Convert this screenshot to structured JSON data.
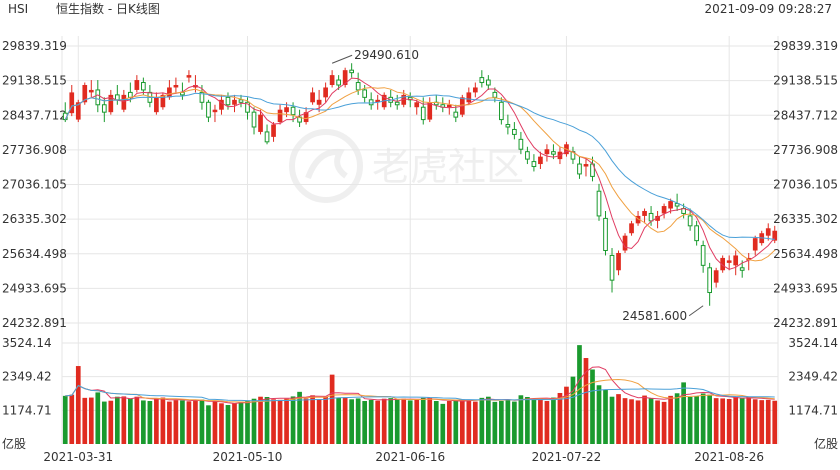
{
  "header": {
    "symbol": "HSI",
    "name": "恒生指数 - 日K线图",
    "datetime": "2021-09-09 09:28:27"
  },
  "watermark": "老虎社区",
  "colors": {
    "up": "#e02b20",
    "down": "#1a9a2e",
    "ma_short": "#e03c62",
    "ma_mid": "#f0a040",
    "ma_long": "#4aa0d8",
    "grid": "#e6e6e6",
    "text": "#333333"
  },
  "chart_data": [
    {
      "type": "candlestick",
      "title": "恒生指数 - 日K线图",
      "y_ticks": [
        "29839.319",
        "29138.515",
        "28437.712",
        "27736.908",
        "27036.105",
        "26335.302",
        "25634.498",
        "24933.695",
        "24232.891"
      ],
      "ylim": [
        24232.891,
        29839.319
      ],
      "x_ticks": [
        "2021-03-31",
        "2021-05-10",
        "2021-06-16",
        "2021-07-22",
        "2021-08-26"
      ],
      "x_tick_bar_index": [
        2,
        28,
        53,
        77,
        102
      ],
      "annotations": [
        {
          "text": "29490.610",
          "value": 29490.61,
          "bar_index": 41
        },
        {
          "text": "24581.600",
          "value": 24581.6,
          "bar_index": 98
        }
      ],
      "ohlc": [
        [
          28480,
          28700,
          28300,
          28350
        ],
        [
          28480,
          29050,
          28420,
          28900
        ],
        [
          28350,
          28750,
          28300,
          28700
        ],
        [
          28700,
          29100,
          28650,
          29050
        ],
        [
          28900,
          29150,
          28800,
          28950
        ],
        [
          28950,
          29150,
          28500,
          28650
        ],
        [
          28650,
          28800,
          28300,
          28500
        ],
        [
          28500,
          28950,
          28450,
          28850
        ],
        [
          28850,
          29050,
          28650,
          28750
        ],
        [
          28550,
          28950,
          28500,
          28850
        ],
        [
          28900,
          29100,
          28700,
          28800
        ],
        [
          28950,
          29250,
          28900,
          29150
        ],
        [
          29100,
          29200,
          28850,
          28950
        ],
        [
          28900,
          29050,
          28600,
          28700
        ],
        [
          28500,
          28900,
          28450,
          28800
        ],
        [
          28600,
          28900,
          28550,
          28850
        ],
        [
          28800,
          29150,
          28750,
          29000
        ],
        [
          29000,
          29200,
          28900,
          29050
        ],
        [
          28900,
          29100,
          28750,
          28850
        ],
        [
          29200,
          29350,
          29100,
          29250
        ],
        [
          29000,
          29250,
          28900,
          29050
        ],
        [
          28900,
          29050,
          28550,
          28700
        ],
        [
          28700,
          28750,
          28300,
          28400
        ],
        [
          28500,
          28650,
          28300,
          28550
        ],
        [
          28550,
          28850,
          28450,
          28750
        ],
        [
          28800,
          28900,
          28550,
          28650
        ],
        [
          28650,
          28850,
          28500,
          28750
        ],
        [
          28750,
          28850,
          28600,
          28700
        ],
        [
          28700,
          28800,
          28350,
          28500
        ],
        [
          28500,
          28600,
          28050,
          28200
        ],
        [
          28100,
          28550,
          28050,
          28450
        ],
        [
          28100,
          28250,
          27850,
          27900
        ],
        [
          28000,
          28300,
          27900,
          28250
        ],
        [
          28300,
          28650,
          28250,
          28550
        ],
        [
          28500,
          28700,
          28400,
          28600
        ],
        [
          28600,
          28700,
          28300,
          28450
        ],
        [
          28400,
          28550,
          28200,
          28300
        ],
        [
          28300,
          28600,
          28250,
          28500
        ],
        [
          28700,
          29000,
          28650,
          28900
        ],
        [
          28650,
          28950,
          28500,
          28750
        ],
        [
          28800,
          29100,
          28700,
          29000
        ],
        [
          29050,
          29350,
          29000,
          29250
        ],
        [
          29150,
          29250,
          28950,
          29050
        ],
        [
          29050,
          29400,
          29000,
          29350
        ],
        [
          29350,
          29490.61,
          29200,
          29300
        ],
        [
          29100,
          29300,
          28850,
          28950
        ],
        [
          28950,
          29050,
          28700,
          28800
        ],
        [
          28750,
          28900,
          28550,
          28650
        ],
        [
          28700,
          28850,
          28550,
          28750
        ],
        [
          28600,
          28900,
          28550,
          28850
        ],
        [
          28800,
          28950,
          28600,
          28700
        ],
        [
          28700,
          28850,
          28550,
          28650
        ],
        [
          28650,
          28950,
          28600,
          28850
        ],
        [
          28800,
          28900,
          28600,
          28750
        ],
        [
          28600,
          28750,
          28450,
          28700
        ],
        [
          28600,
          28800,
          28250,
          28350
        ],
        [
          28350,
          28800,
          28300,
          28700
        ],
        [
          28700,
          28850,
          28550,
          28650
        ],
        [
          28650,
          28800,
          28500,
          28600
        ],
        [
          28600,
          28750,
          28450,
          28650
        ],
        [
          28500,
          28650,
          28300,
          28400
        ],
        [
          28450,
          28850,
          28400,
          28800
        ],
        [
          28700,
          29000,
          28650,
          28900
        ],
        [
          28900,
          29100,
          28800,
          29000
        ],
        [
          29200,
          29350,
          29000,
          29100
        ],
        [
          29150,
          29250,
          28950,
          29050
        ],
        [
          28900,
          29000,
          28700,
          28800
        ],
        [
          28700,
          28800,
          28250,
          28350
        ],
        [
          28250,
          28450,
          28050,
          28200
        ],
        [
          28150,
          28300,
          27950,
          28050
        ],
        [
          27950,
          28100,
          27650,
          27750
        ],
        [
          27700,
          27800,
          27450,
          27550
        ],
        [
          27500,
          27650,
          27300,
          27400
        ],
        [
          27450,
          27700,
          27350,
          27600
        ],
        [
          27650,
          27850,
          27500,
          27750
        ],
        [
          27700,
          27850,
          27550,
          27650
        ],
        [
          27550,
          27800,
          27450,
          27700
        ],
        [
          27650,
          27900,
          27600,
          27850
        ],
        [
          27700,
          27800,
          27450,
          27550
        ],
        [
          27450,
          27600,
          27150,
          27250
        ],
        [
          27400,
          27550,
          27200,
          27450
        ],
        [
          27450,
          27600,
          27100,
          27200
        ],
        [
          26900,
          27050,
          26300,
          26400
        ],
        [
          26350,
          26500,
          25600,
          25700
        ],
        [
          25600,
          25750,
          24850,
          25100
        ],
        [
          25300,
          25700,
          25200,
          25650
        ],
        [
          25700,
          26050,
          25650,
          26000
        ],
        [
          26050,
          26300,
          26000,
          26250
        ],
        [
          26250,
          26500,
          26200,
          26400
        ],
        [
          26400,
          26550,
          26250,
          26500
        ],
        [
          26450,
          26600,
          26200,
          26300
        ],
        [
          26300,
          26500,
          26150,
          26400
        ],
        [
          26450,
          26650,
          26350,
          26600
        ],
        [
          26550,
          26750,
          26450,
          26700
        ],
        [
          26650,
          26850,
          26500,
          26600
        ],
        [
          26550,
          26650,
          26350,
          26450
        ],
        [
          26400,
          26550,
          26100,
          26200
        ],
        [
          26200,
          26300,
          25800,
          25900
        ],
        [
          25800,
          25900,
          25250,
          25400
        ],
        [
          25350,
          25450,
          24581.6,
          24850
        ],
        [
          25050,
          25350,
          24950,
          25300
        ],
        [
          25300,
          25600,
          25250,
          25550
        ],
        [
          25450,
          25600,
          25300,
          25500
        ],
        [
          25400,
          25700,
          25200,
          25600
        ],
        [
          25350,
          25500,
          25150,
          25300
        ],
        [
          25500,
          25650,
          25300,
          25550
        ],
        [
          25700,
          26000,
          25600,
          25950
        ],
        [
          25850,
          26100,
          25800,
          26050
        ],
        [
          26000,
          26250,
          25900,
          26150
        ],
        [
          25900,
          26200,
          25850,
          26100
        ]
      ]
    },
    {
      "type": "bar",
      "y_ticks": [
        "3524.14",
        "2349.42",
        "1174.71"
      ],
      "ylim": [
        0,
        3524.14
      ],
      "unit": "亿股",
      "values": [
        1680,
        1720,
        2720,
        1610,
        1620,
        1800,
        1480,
        1510,
        1650,
        1660,
        1590,
        1650,
        1520,
        1500,
        1580,
        1620,
        1480,
        1530,
        1520,
        1490,
        1540,
        1550,
        1350,
        1500,
        1420,
        1360,
        1430,
        1480,
        1510,
        1580,
        1650,
        1640,
        1560,
        1540,
        1580,
        1660,
        1820,
        1590,
        1700,
        1560,
        1640,
        2420,
        1620,
        1630,
        1560,
        1590,
        1500,
        1540,
        1510,
        1580,
        1600,
        1550,
        1580,
        1520,
        1550,
        1610,
        1620,
        1500,
        1400,
        1500,
        1530,
        1560,
        1550,
        1480,
        1610,
        1650,
        1470,
        1500,
        1540,
        1480,
        1700,
        1640,
        1580,
        1580,
        1500,
        1620,
        1780,
        2000,
        2350,
        3450,
        3000,
        2600,
        2050,
        1890,
        1650,
        1740,
        1600,
        1560,
        1520,
        1690,
        1600,
        1520,
        1470,
        1680,
        1770,
        2150,
        1640,
        1670,
        1760,
        1720,
        1600,
        1590,
        1570,
        1640,
        1600,
        1650,
        1560,
        1530,
        1540,
        1510
      ]
    }
  ]
}
